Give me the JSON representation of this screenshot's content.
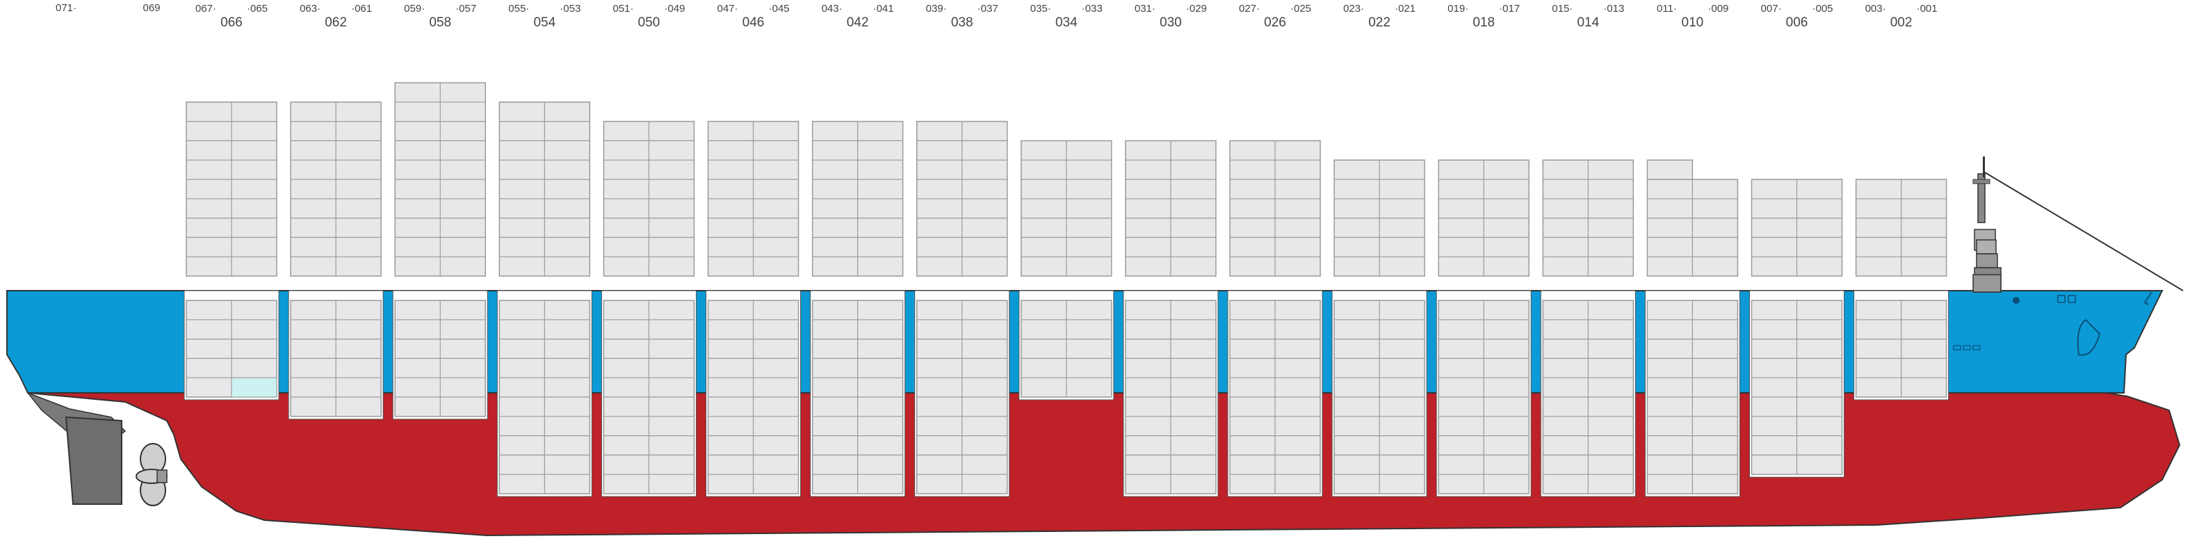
{
  "colors": {
    "hull_upper": "#0b9ad6",
    "hull_lower": "#be2128",
    "stern_top": "#0b8fd0",
    "deck_line": "#e8e8ea",
    "container_fill": "#e8e8ea",
    "container_stroke": "#9a9a9a",
    "empty_slot_fill": "#ccf3f2",
    "label_color": "#444444"
  },
  "header": {
    "top_labels": [
      {
        "id": "bay-071",
        "text": "071·"
      },
      {
        "id": "bay-069",
        "text": "069"
      }
    ]
  },
  "bays": [
    {
      "id": "066",
      "main": "066",
      "left": "067·",
      "right": "·065",
      "above_tiers": 9,
      "below_tiers": 5,
      "below_note": "partial"
    },
    {
      "id": "062",
      "main": "062",
      "left": "063·",
      "right": "·061",
      "above_tiers": 9,
      "below_tiers": 6
    },
    {
      "id": "058",
      "main": "058",
      "left": "059·",
      "right": "·057",
      "above_tiers": 10,
      "below_tiers": 6
    },
    {
      "id": "054",
      "main": "054",
      "left": "055·",
      "right": "·053",
      "above_tiers": 9,
      "below_tiers": 10
    },
    {
      "id": "050",
      "main": "050",
      "left": "051·",
      "right": "·049",
      "above_tiers": 8,
      "below_tiers": 10
    },
    {
      "id": "046",
      "main": "046",
      "left": "047·",
      "right": "·045",
      "above_tiers": 8,
      "below_tiers": 10
    },
    {
      "id": "042",
      "main": "042",
      "left": "043·",
      "right": "·041",
      "above_tiers": 8,
      "below_tiers": 10
    },
    {
      "id": "038",
      "main": "038",
      "left": "039·",
      "right": "·037",
      "above_tiers": 8,
      "below_tiers": 10
    },
    {
      "id": "034",
      "main": "034",
      "left": "035·",
      "right": "·033",
      "above_tiers": 7,
      "below_tiers": 5
    },
    {
      "id": "030",
      "main": "030",
      "left": "031·",
      "right": "·029",
      "above_tiers": 7,
      "below_tiers": 10
    },
    {
      "id": "026",
      "main": "026",
      "left": "027·",
      "right": "·025",
      "above_tiers": 7,
      "below_tiers": 10
    },
    {
      "id": "022",
      "main": "022",
      "left": "023·",
      "right": "·021",
      "above_tiers": 6,
      "below_tiers": 10
    },
    {
      "id": "018",
      "main": "018",
      "left": "019·",
      "right": "·017",
      "above_tiers": 6,
      "below_tiers": 10
    },
    {
      "id": "014",
      "main": "014",
      "left": "015·",
      "right": "·013",
      "above_tiers": 6,
      "below_tiers": 10
    },
    {
      "id": "010",
      "main": "010",
      "left": "011·",
      "right": "·009",
      "above_tiers": 5,
      "below_tiers": 10
    },
    {
      "id": "006",
      "main": "006",
      "left": "007·",
      "right": "·005",
      "above_tiers": 5,
      "below_tiers": 9
    },
    {
      "id": "002",
      "main": "002",
      "left": "003·",
      "right": "·001",
      "above_tiers": 5,
      "below_tiers": 5
    }
  ],
  "icons": {
    "propeller": "propeller-icon",
    "rudder": "rudder-icon",
    "mast": "mast-icon",
    "anchor": "anchor-icon",
    "bridge": "bridge-icon",
    "bulbous_bow": "bow-bulb-icon"
  }
}
